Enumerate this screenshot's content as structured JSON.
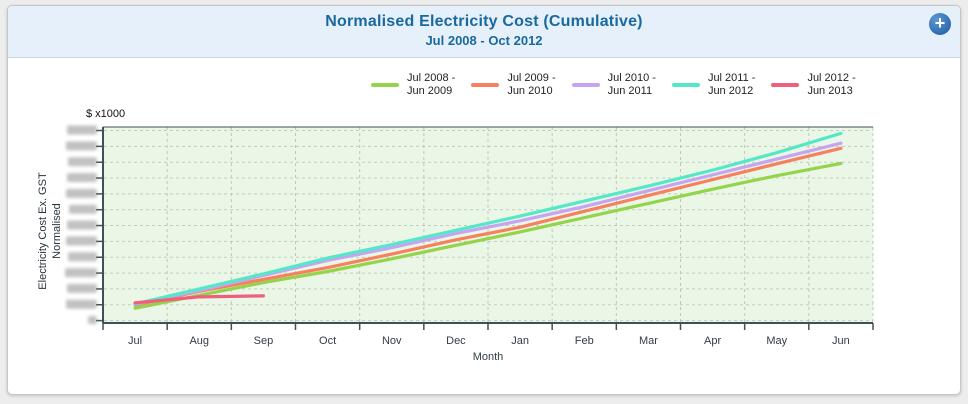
{
  "header": {
    "title": "Normalised Electricity Cost (Cumulative)",
    "subtitle": "Jul 2008 - Oct 2012",
    "add_button_glyph": "+"
  },
  "colors": {
    "header_bg": "#e5f0fa",
    "title_text": "#1a699e",
    "plot_bg": "#eaf6e6",
    "axis": "#3d5156",
    "grid": "#b9c4b9"
  },
  "chart_data": {
    "type": "line",
    "title": "Normalised Electricity Cost (Cumulative)",
    "subtitle": "Jul 2008 - Oct 2012",
    "xlabel": "Month",
    "ylabel_line1": "Electricity Cost Ex. GST",
    "ylabel_line2": "Normalised",
    "y_units_label": "$ x1000",
    "categories": [
      "Jul",
      "Aug",
      "Sep",
      "Oct",
      "Nov",
      "Dec",
      "Jan",
      "Feb",
      "Mar",
      "Apr",
      "May",
      "Jun"
    ],
    "y_axis": {
      "tick_count": 13,
      "tick_labels_obscured": true,
      "value_units": "gridline steps (labels blurred in source)",
      "ylim": [
        0,
        12
      ],
      "gridlines": "dashed"
    },
    "legend_position": "top",
    "series": [
      {
        "name": "Jul 2008 - Jun 2009",
        "color": "#94d44c",
        "values": [
          0.78,
          1.6,
          2.4,
          3.1,
          3.9,
          4.75,
          5.6,
          6.5,
          7.4,
          8.3,
          9.15,
          9.92
        ]
      },
      {
        "name": "Jul 2009 - Jun 2010",
        "color": "#f5815f",
        "values": [
          0.98,
          1.85,
          2.6,
          3.35,
          4.2,
          5.1,
          5.9,
          6.9,
          7.9,
          8.9,
          9.9,
          10.88
        ]
      },
      {
        "name": "Jul 2010 - Jun 2011",
        "color": "#c7a4f2",
        "values": [
          1.02,
          1.9,
          2.85,
          3.8,
          4.6,
          5.5,
          6.3,
          7.2,
          8.2,
          9.2,
          10.2,
          11.2
        ]
      },
      {
        "name": "Jul 2011 - Jun 2012",
        "color": "#55e8c8",
        "values": [
          1.05,
          2.0,
          2.95,
          3.95,
          4.8,
          5.7,
          6.6,
          7.55,
          8.5,
          9.5,
          10.6,
          11.82
        ]
      },
      {
        "name": "Jul 2012 - Jun 2013",
        "color": "#f15f7d",
        "values": [
          1.12,
          1.5,
          1.56
        ]
      }
    ]
  }
}
